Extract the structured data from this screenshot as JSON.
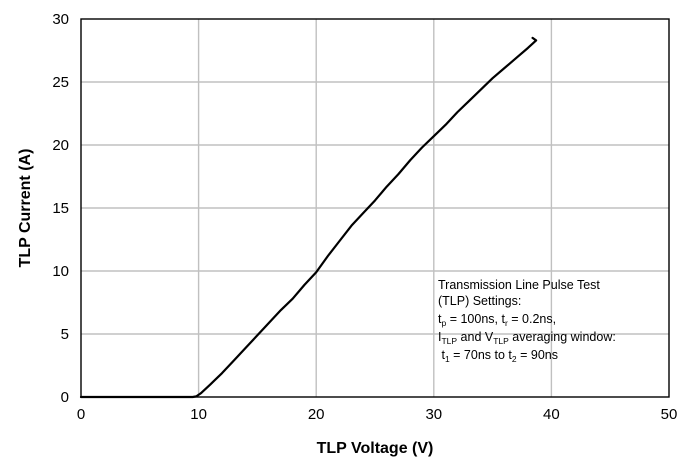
{
  "chart_data": {
    "type": "line",
    "title": "",
    "xlabel": "TLP Voltage (V)",
    "ylabel": "TLP Current (A)",
    "xlim": [
      0,
      50
    ],
    "ylim": [
      0,
      30
    ],
    "xticks": [
      0,
      10,
      20,
      30,
      40,
      50
    ],
    "yticks": [
      0,
      5,
      10,
      15,
      20,
      25,
      30
    ],
    "xtick_labels": [
      "0",
      "10",
      "20",
      "30",
      "40",
      "50"
    ],
    "ytick_labels": [
      "0",
      "5",
      "10",
      "15",
      "20",
      "25",
      "30"
    ],
    "grid": true,
    "series": [
      {
        "name": "",
        "color": "#000000",
        "x": [
          0,
          9.5,
          9.8,
          10.2,
          11.0,
          12.0,
          13.0,
          14.0,
          15.0,
          16.0,
          17.0,
          18.0,
          19.0,
          20.0,
          21.0,
          22.0,
          23.0,
          24.0,
          25.0,
          26.0,
          27.0,
          28.0,
          29.0,
          30.0,
          31.0,
          32.0,
          33.0,
          34.0,
          35.0,
          36.0,
          37.0,
          38.0,
          38.7,
          38.4
        ],
        "y": [
          0,
          0,
          0.05,
          0.3,
          1.0,
          1.9,
          2.9,
          3.9,
          4.9,
          5.9,
          6.9,
          7.8,
          8.9,
          9.9,
          11.2,
          12.4,
          13.6,
          14.6,
          15.6,
          16.7,
          17.7,
          18.8,
          19.8,
          20.7,
          21.6,
          22.6,
          23.5,
          24.4,
          25.3,
          26.1,
          26.9,
          27.7,
          28.3,
          28.5
        ]
      }
    ],
    "annotation": {
      "line1": "Transmission Line Pulse Test",
      "line2": "(TLP) Settings:",
      "line3": {
        "a": "t",
        "a_sub": "p",
        "b": " = 100ns, t",
        "b_sub": "r",
        "c": " = 0.2ns,"
      },
      "line4": {
        "a": "I",
        "a_sub": "TLP",
        "b": " and V",
        "b_sub": "TLP",
        "c": " averaging window:"
      },
      "line5": {
        "a": " t",
        "a_sub": "1",
        "b": " = 70ns to t",
        "b_sub": "2",
        "c": " = 90ns"
      }
    }
  }
}
